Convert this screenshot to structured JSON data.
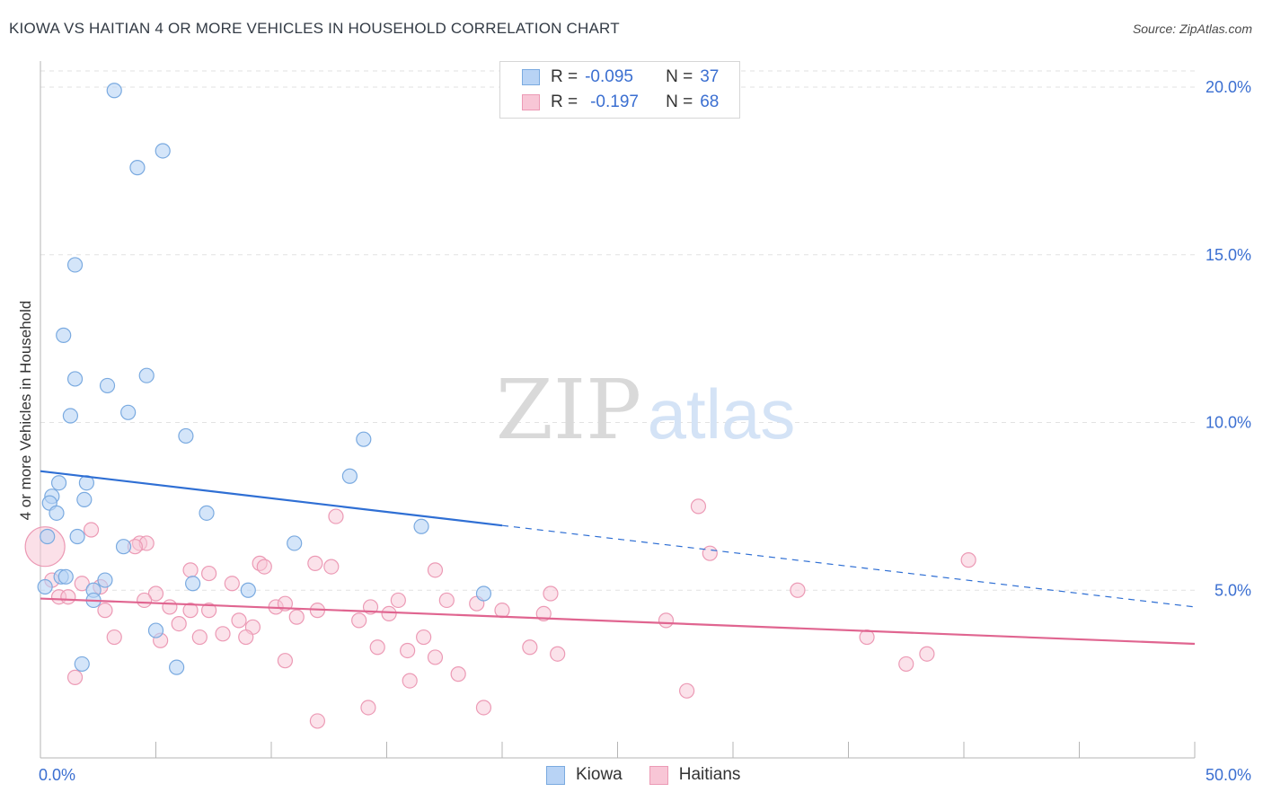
{
  "header": {
    "title": "KIOWA VS HAITIAN 4 OR MORE VEHICLES IN HOUSEHOLD CORRELATION CHART",
    "source": "Source: ZipAtlas.com"
  },
  "watermark": {
    "zip": "ZIP",
    "atlas": "atlas"
  },
  "colors": {
    "kiowa_fill": "#b8d3f5",
    "kiowa_stroke": "#7aaae0",
    "kiowa_line": "#2f6fd4",
    "haitians_fill": "#f8c6d6",
    "haitians_stroke": "#ec9ab5",
    "haitians_line": "#e06590",
    "axis_label": "#3b6fd1",
    "grid": "#e2e2e2"
  },
  "legend": {
    "kiowa": {
      "r_label": "R =",
      "r_value": "-0.095",
      "n_label": "N =",
      "n_value": "37"
    },
    "haitians": {
      "r_label": "R =",
      "r_value": "-0.197",
      "n_label": "N =",
      "n_value": "68"
    }
  },
  "chart_data": {
    "type": "scatter",
    "title": "KIOWA VS HAITIAN 4 OR MORE VEHICLES IN HOUSEHOLD CORRELATION CHART",
    "xlabel": "",
    "ylabel": "4 or more Vehicles in Household",
    "xlim": [
      0,
      50
    ],
    "ylim": [
      0,
      20.5
    ],
    "x_tick_labels": [
      "0.0%",
      "50.0%"
    ],
    "y_tick_labels": [
      "5.0%",
      "10.0%",
      "15.0%",
      "20.0%"
    ],
    "y_ticks": [
      5,
      10,
      15,
      20
    ],
    "legend_position": "bottom-center",
    "series": [
      {
        "name": "Kiowa",
        "r": -0.095,
        "n": 37,
        "trend": {
          "x0": 0,
          "y0": 8.55,
          "x_solid_end": 20,
          "x1": 50,
          "y1": 4.5
        },
        "points": [
          [
            3.2,
            19.9
          ],
          [
            5.3,
            18.1
          ],
          [
            4.2,
            17.6
          ],
          [
            1.5,
            14.7
          ],
          [
            1.0,
            12.6
          ],
          [
            1.5,
            11.3
          ],
          [
            2.9,
            11.1
          ],
          [
            4.6,
            11.4
          ],
          [
            1.3,
            10.2
          ],
          [
            3.8,
            10.3
          ],
          [
            6.3,
            9.6
          ],
          [
            14.0,
            9.5
          ],
          [
            13.4,
            8.4
          ],
          [
            0.8,
            8.2
          ],
          [
            2.0,
            8.2
          ],
          [
            0.5,
            7.8
          ],
          [
            0.4,
            7.6
          ],
          [
            1.9,
            7.7
          ],
          [
            0.7,
            7.3
          ],
          [
            7.2,
            7.3
          ],
          [
            16.5,
            6.9
          ],
          [
            0.3,
            6.6
          ],
          [
            1.6,
            6.6
          ],
          [
            3.6,
            6.3
          ],
          [
            11.0,
            6.4
          ],
          [
            0.9,
            5.4
          ],
          [
            1.1,
            5.4
          ],
          [
            2.8,
            5.3
          ],
          [
            6.6,
            5.2
          ],
          [
            0.2,
            5.1
          ],
          [
            2.3,
            5.0
          ],
          [
            9.0,
            5.0
          ],
          [
            19.2,
            4.9
          ],
          [
            2.3,
            4.7
          ],
          [
            5.0,
            3.8
          ],
          [
            1.8,
            2.8
          ],
          [
            5.9,
            2.7
          ]
        ]
      },
      {
        "name": "Haitians",
        "r": -0.197,
        "n": 68,
        "trend": {
          "x0": 0,
          "y0": 4.75,
          "x1": 50,
          "y1": 3.4
        },
        "points": [
          [
            0.2,
            6.3
          ],
          [
            2.2,
            6.8
          ],
          [
            4.3,
            6.4
          ],
          [
            4.6,
            6.4
          ],
          [
            4.1,
            6.3
          ],
          [
            28.5,
            7.5
          ],
          [
            12.8,
            7.2
          ],
          [
            29.0,
            6.1
          ],
          [
            40.2,
            5.9
          ],
          [
            9.5,
            5.8
          ],
          [
            11.9,
            5.8
          ],
          [
            12.6,
            5.7
          ],
          [
            6.5,
            5.6
          ],
          [
            9.7,
            5.7
          ],
          [
            17.1,
            5.6
          ],
          [
            7.3,
            5.5
          ],
          [
            0.5,
            5.3
          ],
          [
            1.8,
            5.2
          ],
          [
            8.3,
            5.2
          ],
          [
            2.6,
            5.1
          ],
          [
            32.8,
            5.0
          ],
          [
            22.1,
            4.9
          ],
          [
            0.8,
            4.8
          ],
          [
            5.0,
            4.9
          ],
          [
            1.2,
            4.8
          ],
          [
            4.5,
            4.7
          ],
          [
            15.5,
            4.7
          ],
          [
            17.6,
            4.7
          ],
          [
            10.2,
            4.5
          ],
          [
            10.6,
            4.6
          ],
          [
            14.3,
            4.5
          ],
          [
            18.9,
            4.6
          ],
          [
            5.6,
            4.5
          ],
          [
            7.3,
            4.4
          ],
          [
            12.0,
            4.4
          ],
          [
            2.8,
            4.4
          ],
          [
            6.5,
            4.4
          ],
          [
            20.0,
            4.4
          ],
          [
            15.1,
            4.3
          ],
          [
            21.8,
            4.3
          ],
          [
            11.1,
            4.2
          ],
          [
            13.8,
            4.1
          ],
          [
            8.6,
            4.1
          ],
          [
            27.1,
            4.1
          ],
          [
            6.0,
            4.0
          ],
          [
            9.2,
            3.9
          ],
          [
            7.9,
            3.7
          ],
          [
            3.2,
            3.6
          ],
          [
            6.9,
            3.6
          ],
          [
            16.6,
            3.6
          ],
          [
            35.8,
            3.6
          ],
          [
            8.9,
            3.6
          ],
          [
            5.2,
            3.5
          ],
          [
            14.6,
            3.3
          ],
          [
            21.2,
            3.3
          ],
          [
            15.9,
            3.2
          ],
          [
            22.4,
            3.1
          ],
          [
            38.4,
            3.1
          ],
          [
            17.1,
            3.0
          ],
          [
            10.6,
            2.9
          ],
          [
            37.5,
            2.8
          ],
          [
            18.1,
            2.5
          ],
          [
            1.5,
            2.4
          ],
          [
            16.0,
            2.3
          ],
          [
            28.0,
            2.0
          ],
          [
            14.2,
            1.5
          ],
          [
            19.2,
            1.5
          ],
          [
            12.0,
            1.1
          ]
        ]
      }
    ]
  },
  "bottom_legend": {
    "kiowa": "Kiowa",
    "haitians": "Haitians"
  }
}
